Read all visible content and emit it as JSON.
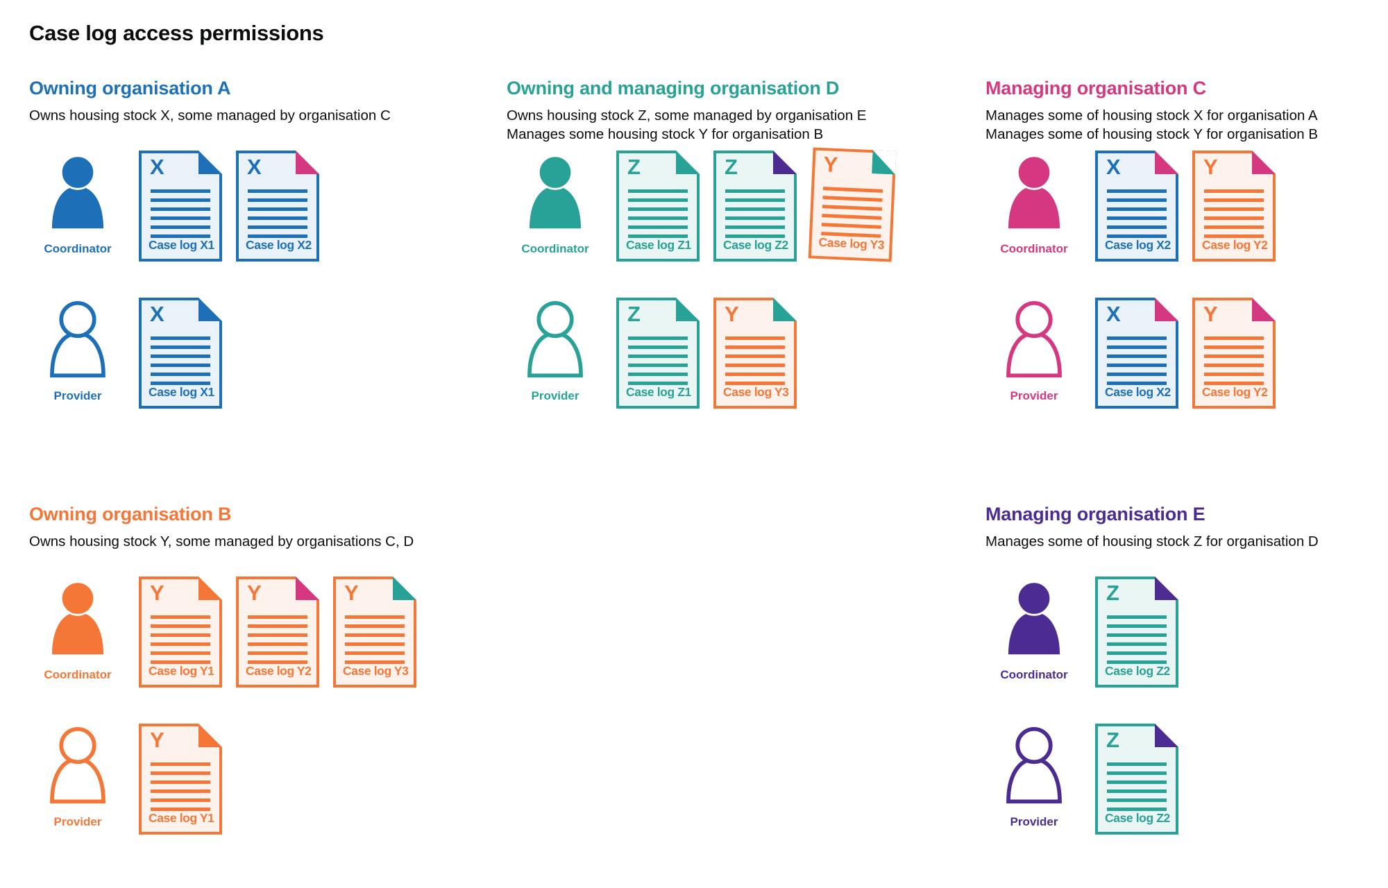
{
  "page_title": "Case log access permissions",
  "colors": {
    "blue": "#1d70b8",
    "teal": "#28a197",
    "orange": "#f47738",
    "pink": "#d53880",
    "purple": "#4c2c92",
    "text": "#0b0c0c",
    "blue_fill": "#eaf2f9",
    "teal_fill": "#eaf6f3",
    "orange_fill": "#fef3ec"
  },
  "sections": [
    {
      "id": "owning-organisation-a",
      "title": "Owning organisation A",
      "color": "blue",
      "column": 1,
      "row": 1,
      "descriptions": [
        "Owns housing stock X, some managed by organisation C"
      ],
      "rows": [
        {
          "role": "Coordinator",
          "person": "filled",
          "docs": [
            {
              "letter": "X",
              "stock": "blue",
              "label": "Case log X1",
              "fold": "blue"
            },
            {
              "letter": "X",
              "stock": "blue",
              "label": "Case log X2",
              "fold": "pink"
            }
          ]
        },
        {
          "role": "Provider",
          "person": "outline",
          "docs": [
            {
              "letter": "X",
              "stock": "blue",
              "label": "Case log X1",
              "fold": "blue"
            }
          ]
        }
      ]
    },
    {
      "id": "owning-and-managing-organisation-d",
      "title": "Owning and managing organisation D",
      "color": "teal",
      "column": 2,
      "row": 1,
      "descriptions": [
        "Owns housing stock Z, some managed by organisation E",
        "Manages some housing stock Y for organisation B"
      ],
      "rows": [
        {
          "role": "Coordinator",
          "person": "filled",
          "docs": [
            {
              "letter": "Z",
              "stock": "teal",
              "label": "Case log Z1",
              "fold": "teal"
            },
            {
              "letter": "Z",
              "stock": "teal",
              "label": "Case log Z2",
              "fold": "purple"
            },
            {
              "letter": "Y",
              "stock": "orange",
              "label": "Case log Y3",
              "fold": "teal",
              "tilt": true
            }
          ]
        },
        {
          "role": "Provider",
          "person": "outline",
          "docs": [
            {
              "letter": "Z",
              "stock": "teal",
              "label": "Case log Z1",
              "fold": "teal"
            },
            {
              "letter": "Y",
              "stock": "orange",
              "label": "Case log Y3",
              "fold": "teal"
            }
          ]
        }
      ]
    },
    {
      "id": "managing-organisation-c",
      "title": "Managing organisation C",
      "color": "pink",
      "column": 3,
      "row": 1,
      "descriptions": [
        "Manages some of housing stock X for organisation A",
        "Manages some of housing stock Y for organisation B"
      ],
      "rows": [
        {
          "role": "Coordinator",
          "person": "filled",
          "docs": [
            {
              "letter": "X",
              "stock": "blue",
              "label": "Case log X2",
              "fold": "pink"
            },
            {
              "letter": "Y",
              "stock": "orange",
              "label": "Case log Y2",
              "fold": "pink"
            }
          ]
        },
        {
          "role": "Provider",
          "person": "outline",
          "docs": [
            {
              "letter": "X",
              "stock": "blue",
              "label": "Case log X2",
              "fold": "pink"
            },
            {
              "letter": "Y",
              "stock": "orange",
              "label": "Case log Y2",
              "fold": "pink"
            }
          ]
        }
      ]
    },
    {
      "id": "owning-organisation-b",
      "title": "Owning organisation B",
      "color": "orange",
      "column": 1,
      "row": 2,
      "descriptions": [
        "Owns housing stock Y, some managed by organisations C, D"
      ],
      "rows": [
        {
          "role": "Coordinator",
          "person": "filled",
          "docs": [
            {
              "letter": "Y",
              "stock": "orange",
              "label": "Case log Y1",
              "fold": "orange"
            },
            {
              "letter": "Y",
              "stock": "orange",
              "label": "Case log Y2",
              "fold": "pink"
            },
            {
              "letter": "Y",
              "stock": "orange",
              "label": "Case log Y3",
              "fold": "teal"
            }
          ]
        },
        {
          "role": "Provider",
          "person": "outline",
          "docs": [
            {
              "letter": "Y",
              "stock": "orange",
              "label": "Case log Y1",
              "fold": "orange"
            }
          ]
        }
      ]
    },
    {
      "id": "managing-organisation-e",
      "title": "Managing organisation E",
      "color": "purple",
      "column": 3,
      "row": 2,
      "descriptions": [
        "Manages some of housing stock Z for organisation D"
      ],
      "rows": [
        {
          "role": "Coordinator",
          "person": "filled",
          "docs": [
            {
              "letter": "Z",
              "stock": "teal",
              "label": "Case log Z2",
              "fold": "purple"
            }
          ]
        },
        {
          "role": "Provider",
          "person": "outline",
          "docs": [
            {
              "letter": "Z",
              "stock": "teal",
              "label": "Case log Z2",
              "fold": "purple"
            }
          ]
        }
      ]
    }
  ]
}
